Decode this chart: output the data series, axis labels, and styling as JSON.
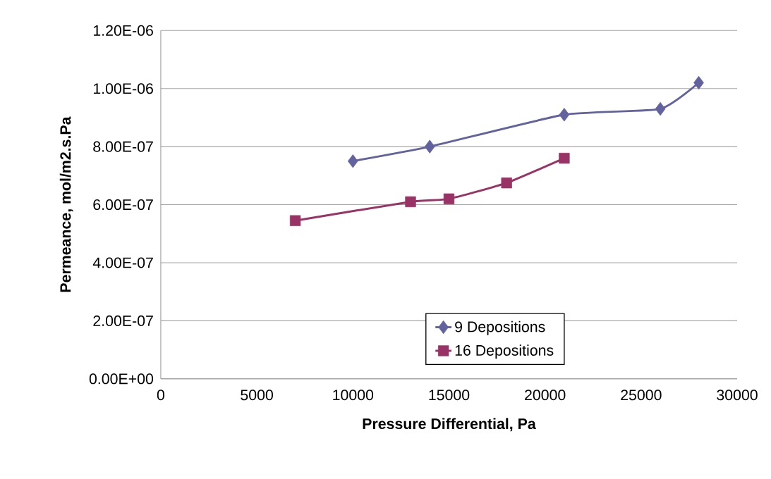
{
  "chart_data": {
    "type": "line",
    "xlabel": "Pressure Differential, Pa",
    "ylabel": "Permeance, mol/m2.s.Pa",
    "series": [
      {
        "name": "9 Depositions",
        "color": "#62629f",
        "marker": "diamond",
        "x": [
          10000,
          14000,
          21000,
          26000,
          28000
        ],
        "values": [
          7.5e-07,
          8e-07,
          9.1e-07,
          9.3e-07,
          1.02e-06
        ]
      },
      {
        "name": "16 Depositions",
        "color": "#993366",
        "marker": "square",
        "x": [
          7000,
          13000,
          15000,
          18000,
          21000
        ],
        "values": [
          5.45e-07,
          6.1e-07,
          6.2e-07,
          6.75e-07,
          7.6e-07
        ]
      }
    ],
    "xlim": [
      0,
      30000
    ],
    "xticks": [
      0,
      5000,
      10000,
      15000,
      20000,
      25000,
      30000
    ],
    "ylim": [
      0,
      1.2e-06
    ],
    "yticks": [
      {
        "value": 0,
        "label": "0.00E+00"
      },
      {
        "value": 2e-07,
        "label": "2.00E-07"
      },
      {
        "value": 4e-07,
        "label": "4.00E-07"
      },
      {
        "value": 6e-07,
        "label": "6.00E-07"
      },
      {
        "value": 8e-07,
        "label": "8.00E-07"
      },
      {
        "value": 1e-06,
        "label": "1.00E-06"
      },
      {
        "value": 1.2e-06,
        "label": "1.20E-06"
      }
    ],
    "grid": "y",
    "legend": "bottom",
    "line_style": "solid"
  }
}
